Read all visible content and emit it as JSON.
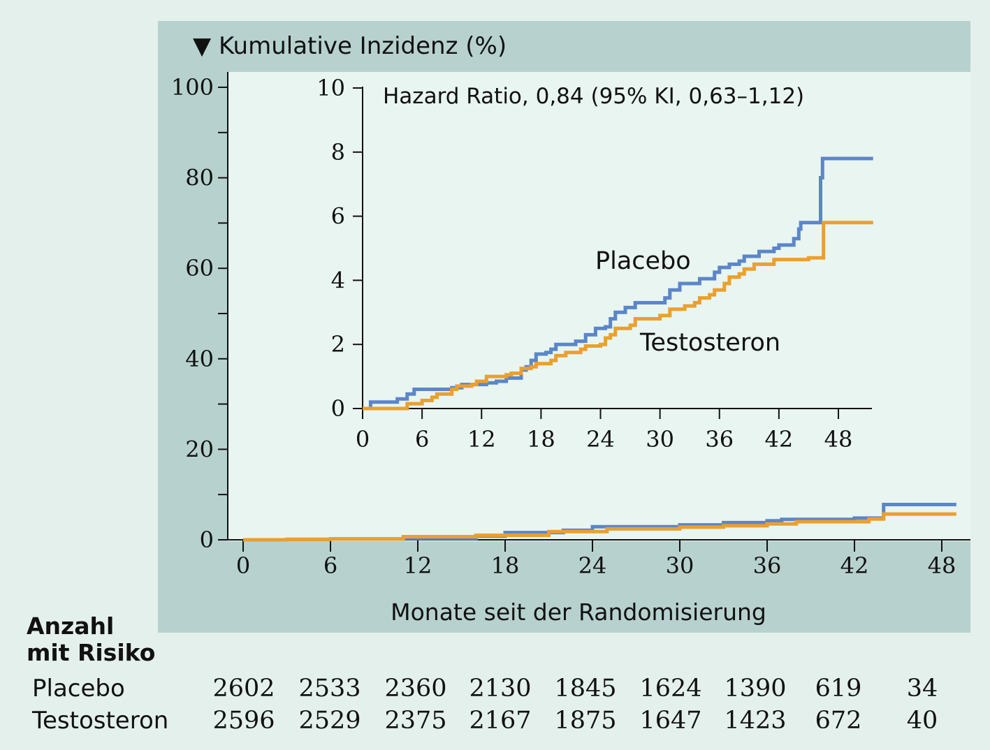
{
  "header": {
    "title": "▼ Kumulative Inzidenz (%)"
  },
  "chart_data": [
    {
      "type": "line",
      "step": true,
      "xlabel": "Monate seit der Randomisierung",
      "xticks": [
        0,
        6,
        12,
        18,
        24,
        30,
        36,
        42,
        48
      ],
      "xlim": [
        0,
        49
      ],
      "yticks": [
        0,
        20,
        40,
        60,
        80,
        100
      ],
      "ylim": [
        0,
        100
      ],
      "colors": {
        "placebo": "#5b86c8",
        "testosteron": "#eaa02e"
      },
      "series": [
        {
          "name": "Placebo",
          "points": [
            [
              0,
              0
            ],
            [
              3,
              0.1
            ],
            [
              6,
              0.2
            ],
            [
              11,
              0.3
            ],
            [
              16,
              0.8
            ],
            [
              18,
              1.6
            ],
            [
              22,
              2.1
            ],
            [
              24,
              2.9
            ],
            [
              30,
              3.3
            ],
            [
              33,
              3.8
            ],
            [
              36,
              4.2
            ],
            [
              37,
              4.5
            ],
            [
              42,
              4.8
            ],
            [
              44,
              7.8
            ],
            [
              49,
              7.8
            ]
          ]
        },
        {
          "name": "Testosteron",
          "points": [
            [
              0,
              0
            ],
            [
              3,
              0.1
            ],
            [
              6,
              0.2
            ],
            [
              11,
              0.7
            ],
            [
              16,
              1.0
            ],
            [
              21,
              1.8
            ],
            [
              25,
              2.4
            ],
            [
              30,
              2.8
            ],
            [
              33,
              3.1
            ],
            [
              36,
              3.5
            ],
            [
              38,
              4.0
            ],
            [
              43,
              4.6
            ],
            [
              44,
              5.7
            ],
            [
              49,
              5.7
            ]
          ]
        }
      ]
    },
    {
      "type": "line",
      "step": true,
      "annotation": "Hazard Ratio, 0,84 (95% KI, 0,63–1,12)",
      "xticks": [
        0,
        6,
        12,
        18,
        24,
        30,
        36,
        42,
        48
      ],
      "xlim": [
        0,
        52
      ],
      "yticks": [
        0,
        2,
        4,
        6,
        8,
        10
      ],
      "ylim": [
        0,
        10
      ],
      "series": [
        {
          "name": "Placebo",
          "points": [
            [
              0,
              0
            ],
            [
              0.8,
              0.2
            ],
            [
              3.5,
              0.3
            ],
            [
              4.5,
              0.45
            ],
            [
              5.2,
              0.6
            ],
            [
              9,
              0.65
            ],
            [
              10,
              0.75
            ],
            [
              12.5,
              0.8
            ],
            [
              13.5,
              0.85
            ],
            [
              14.5,
              0.95
            ],
            [
              16,
              1.2
            ],
            [
              16.5,
              1.3
            ],
            [
              17,
              1.5
            ],
            [
              17.5,
              1.7
            ],
            [
              18.5,
              1.75
            ],
            [
              19,
              1.85
            ],
            [
              19.5,
              2.0
            ],
            [
              21.5,
              2.1
            ],
            [
              22.5,
              2.3
            ],
            [
              23.5,
              2.5
            ],
            [
              24.5,
              2.55
            ],
            [
              25,
              2.8
            ],
            [
              25.5,
              3.0
            ],
            [
              26.5,
              3.15
            ],
            [
              27.5,
              3.3
            ],
            [
              30.5,
              3.45
            ],
            [
              31,
              3.7
            ],
            [
              32,
              3.9
            ],
            [
              34,
              4.05
            ],
            [
              35.5,
              4.25
            ],
            [
              36,
              4.4
            ],
            [
              37,
              4.5
            ],
            [
              38,
              4.6
            ],
            [
              38.5,
              4.75
            ],
            [
              40,
              4.9
            ],
            [
              41.5,
              5.0
            ],
            [
              42,
              5.1
            ],
            [
              43.5,
              5.3
            ],
            [
              44,
              5.6
            ],
            [
              44.2,
              5.8
            ],
            [
              46,
              5.8
            ],
            [
              46.2,
              7.2
            ],
            [
              46.4,
              7.8
            ],
            [
              51.5,
              7.8
            ]
          ]
        },
        {
          "name": "Testosteron",
          "points": [
            [
              0,
              0
            ],
            [
              4.5,
              0.15
            ],
            [
              6,
              0.25
            ],
            [
              7,
              0.35
            ],
            [
              7.5,
              0.45
            ],
            [
              9,
              0.6
            ],
            [
              9.5,
              0.7
            ],
            [
              11,
              0.75
            ],
            [
              11.5,
              0.85
            ],
            [
              12.5,
              1.0
            ],
            [
              14.5,
              1.05
            ],
            [
              15,
              1.1
            ],
            [
              16,
              1.25
            ],
            [
              17,
              1.3
            ],
            [
              17.5,
              1.4
            ],
            [
              19,
              1.5
            ],
            [
              19.5,
              1.65
            ],
            [
              20.5,
              1.75
            ],
            [
              22,
              1.85
            ],
            [
              22.5,
              1.95
            ],
            [
              24,
              2.0
            ],
            [
              24.5,
              2.2
            ],
            [
              25,
              2.3
            ],
            [
              25.5,
              2.5
            ],
            [
              27,
              2.6
            ],
            [
              27.5,
              2.8
            ],
            [
              30,
              2.9
            ],
            [
              31,
              3.1
            ],
            [
              32.5,
              3.2
            ],
            [
              33.5,
              3.3
            ],
            [
              34,
              3.45
            ],
            [
              35,
              3.55
            ],
            [
              35.5,
              3.7
            ],
            [
              36.5,
              3.9
            ],
            [
              37,
              4.1
            ],
            [
              38,
              4.2
            ],
            [
              38.5,
              4.35
            ],
            [
              39.5,
              4.5
            ],
            [
              41,
              4.5
            ],
            [
              41.5,
              4.65
            ],
            [
              45,
              4.7
            ],
            [
              46.5,
              4.7
            ],
            [
              46.5,
              5.8
            ],
            [
              51.5,
              5.8
            ]
          ]
        }
      ]
    }
  ],
  "risk_table": {
    "heading_line1": "Anzahl",
    "heading_line2": "mit Risiko",
    "rows": [
      {
        "label": "Placebo",
        "values": [
          "2602",
          "2533",
          "2360",
          "2130",
          "1845",
          "1624",
          "1390",
          "619",
          "34"
        ]
      },
      {
        "label": "Testosteron",
        "values": [
          "2596",
          "2529",
          "2375",
          "2167",
          "1875",
          "1647",
          "1423",
          "672",
          "40"
        ]
      }
    ]
  }
}
